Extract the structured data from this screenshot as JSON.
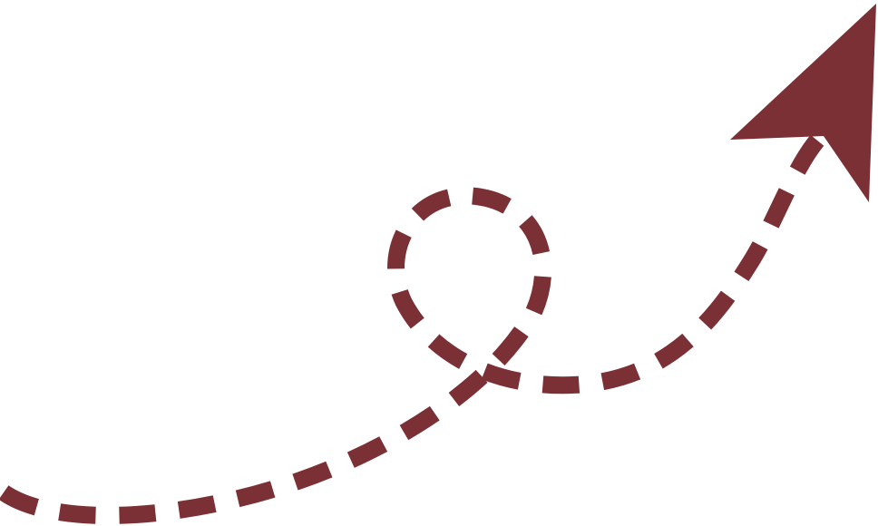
{
  "graphic": {
    "icon": "dashed-looping-arrow-icon",
    "color": "#7b3035",
    "background": "#ffffff"
  }
}
